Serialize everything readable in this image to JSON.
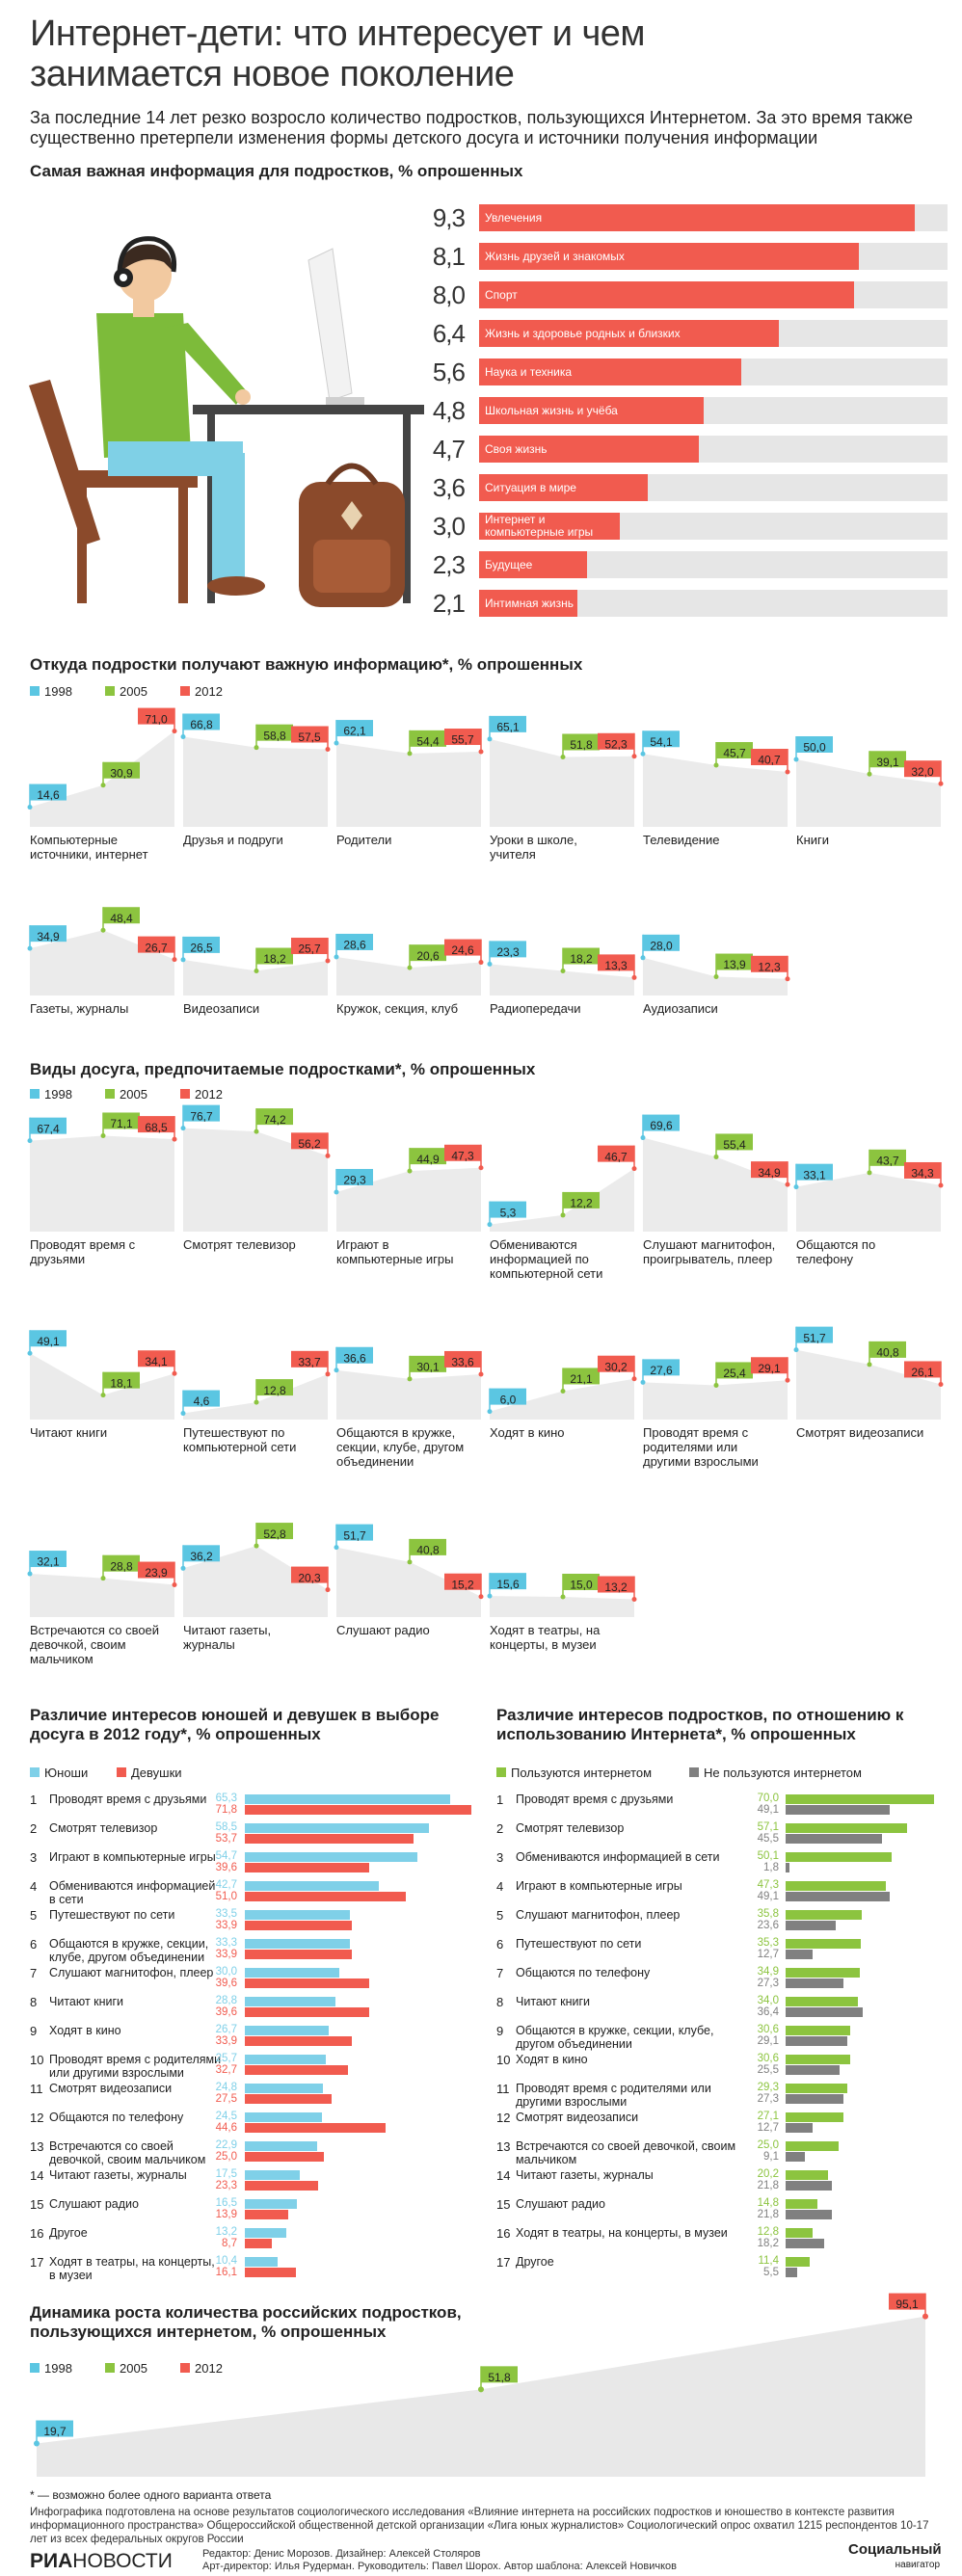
{
  "header": {
    "title": "Интернет-дети: что интересует и чем занимается новое поколение",
    "subtitle": "За последние 14 лет резко возросло количество подростков, пользующихся Интернетом. За это время также существенно претерпели изменения формы детского досуга и источники получения информации"
  },
  "chart_data": [
    {
      "type": "bar",
      "title": "Самая важная информация для подростков, % опрошенных",
      "categories": [
        "Увлечения",
        "Жизнь друзей и знакомых",
        "Спорт",
        "Жизнь и здоровье родных и близких",
        "Наука и техника",
        "Школьная жизнь и учёба",
        "Своя жизнь",
        "Ситуация в мире",
        "Интернет и компьютерные игры",
        "Будущее",
        "Интимная жизнь"
      ],
      "values": [
        9.3,
        8.1,
        8.0,
        6.4,
        5.6,
        4.8,
        4.7,
        3.6,
        3.0,
        2.3,
        2.1
      ],
      "value_labels": [
        "9,3",
        "8,1",
        "8,0",
        "6,4",
        "5,6",
        "4,8",
        "4,7",
        "3,6",
        "3,0",
        "2,3",
        "2,1"
      ],
      "color": "#f15b4f",
      "xlim": [
        0,
        10
      ]
    },
    {
      "type": "flags",
      "title": "Откуда подростки получают важную информацию*, % опрошенных",
      "categories": [
        "Компьютерные источники, интернет",
        "Друзья и подруги",
        "Родители",
        "Уроки в школе, учителя",
        "Телевидение",
        "Книги",
        "Газеты, журналы",
        "Видеозаписи",
        "Кружок, секция, клуб",
        "Радиопередачи",
        "Аудиозаписи"
      ],
      "series": [
        {
          "name": "1998",
          "color": "#5bc6e2",
          "values": [
            14.6,
            66.8,
            62.1,
            65.1,
            54.1,
            50.0,
            34.9,
            26.5,
            28.6,
            23.3,
            28.0
          ],
          "value_labels": [
            "14,6",
            "66,8",
            "62,1",
            "65,1",
            "54,1",
            "50,0",
            "34,9",
            "26,5",
            "28,6",
            "23,3",
            "28,0"
          ]
        },
        {
          "name": "2005",
          "color": "#8cc43f",
          "values": [
            30.9,
            58.8,
            54.4,
            51.8,
            45.7,
            39.1,
            48.4,
            18.2,
            20.6,
            18.2,
            13.9
          ],
          "value_labels": [
            "30,9",
            "58,8",
            "54,4",
            "51,8",
            "45,7",
            "39,1",
            "48,4",
            "18,2",
            "20,6",
            "18,2",
            "13,9"
          ]
        },
        {
          "name": "2012",
          "color": "#f15b4f",
          "values": [
            71.0,
            57.5,
            55.7,
            52.3,
            40.7,
            32.0,
            26.7,
            25.7,
            24.6,
            13.3,
            12.3
          ],
          "value_labels": [
            "71,0",
            "57,5",
            "55,7",
            "52,3",
            "40,7",
            "32,0",
            "26,7",
            "25,7",
            "24,6",
            "13,3",
            "12,3"
          ]
        }
      ],
      "ylim": [
        0,
        80
      ]
    },
    {
      "type": "flags",
      "title": "Виды досуга, предпочитаемые подростками*, % опрошенных",
      "categories": [
        "Проводят время с друзьями",
        "Смотрят телевизор",
        "Играют в компьютерные игры",
        "Обмениваются информацией по компьютерной сети",
        "Слушают магнитофон, проигрыватель, плеер",
        "Общаются по телефону",
        "Читают книги",
        "Путешествуют по компьютерной сети",
        "Общаются в кружке, секции, клубе, другом объединении",
        "Ходят в кино",
        "Проводят время с родителями или другими взрослыми",
        "Смотрят видеозаписи",
        "Встречаются со своей девочкой, своим мальчиком",
        "Читают газеты, журналы",
        "Слушают радио",
        "Ходят в театры, на концерты, в музеи"
      ],
      "series": [
        {
          "name": "1998",
          "color": "#5bc6e2",
          "values": [
            67.4,
            76.7,
            29.3,
            5.3,
            69.6,
            33.1,
            49.1,
            4.6,
            36.6,
            6.0,
            27.6,
            51.7,
            32.1,
            36.2,
            51.7,
            15.6
          ],
          "value_labels": [
            "67,4",
            "76,7",
            "29,3",
            "5,3",
            "69,6",
            "33,1",
            "49,1",
            "4,6",
            "36,6",
            "6,0",
            "27,6",
            "51,7",
            "32,1",
            "36,2",
            "51,7",
            "15,6"
          ]
        },
        {
          "name": "2005",
          "color": "#8cc43f",
          "values": [
            71.1,
            74.2,
            44.9,
            12.2,
            55.4,
            43.7,
            18.1,
            12.8,
            30.1,
            21.1,
            25.4,
            40.8,
            28.8,
            52.8,
            40.8,
            15.0
          ],
          "value_labels": [
            "71,1",
            "74,2",
            "44,9",
            "12,2",
            "55,4",
            "43,7",
            "18,1",
            "12,8",
            "30,1",
            "21,1",
            "25,4",
            "40,8",
            "28,8",
            "52,8",
            "40,8",
            "15,0"
          ]
        },
        {
          "name": "2012",
          "color": "#f15b4f",
          "values": [
            68.5,
            56.2,
            47.3,
            46.7,
            34.9,
            34.3,
            34.1,
            33.7,
            33.6,
            30.2,
            29.1,
            26.1,
            23.9,
            20.3,
            15.2,
            13.2
          ],
          "value_labels": [
            "68,5",
            "56,2",
            "47,3",
            "46,7",
            "34,9",
            "34,3",
            "34,1",
            "33,7",
            "33,6",
            "30,2",
            "29,1",
            "26,1",
            "23,9",
            "20,3",
            "15,2",
            "13,2"
          ]
        }
      ],
      "ylim": [
        0,
        80
      ]
    },
    {
      "type": "hbar",
      "title": "Различие интересов юношей и девушек в выборе досуга в 2012 году*, % опрошенных",
      "ranks": [
        1,
        2,
        3,
        4,
        5,
        6,
        7,
        8,
        9,
        10,
        11,
        12,
        13,
        14,
        15,
        16,
        17
      ],
      "categories": [
        "Проводят время с друзьями",
        "Смотрят телевизор",
        "Играют в компьютерные игры",
        "Обмениваются информацией в сети",
        "Путешествуют по сети",
        "Общаются в кружке, секции, клубе, другом объединении",
        "Слушают магнитофон, плеер",
        "Читают книги",
        "Ходят в кино",
        "Проводят время с родителями или другими взрослыми",
        "Смотрят видеозаписи",
        "Общаются по телефону",
        "Встречаются со своей девочкой, своим мальчиком",
        "Читают газеты, журналы",
        "Слушают радио",
        "Другое",
        "Ходят в театры, на концерты, в музеи"
      ],
      "series": [
        {
          "name": "Юноши",
          "color": "#7fd0e8",
          "values": [
            65.3,
            58.5,
            54.7,
            42.7,
            33.5,
            33.3,
            30.0,
            28.8,
            26.7,
            25.7,
            24.8,
            24.5,
            22.9,
            17.5,
            16.5,
            13.2,
            10.4
          ],
          "value_labels": [
            "65,3",
            "58,5",
            "54,7",
            "42,7",
            "33,5",
            "33,3",
            "30,0",
            "28,8",
            "26,7",
            "25,7",
            "24,8",
            "24,5",
            "22,9",
            "17,5",
            "16,5",
            "13,2",
            "10,4"
          ]
        },
        {
          "name": "Девушки",
          "color": "#f15b4f",
          "values": [
            71.8,
            53.7,
            39.6,
            51.0,
            33.9,
            33.9,
            39.6,
            39.6,
            33.9,
            32.7,
            27.5,
            44.6,
            25.0,
            23.3,
            13.9,
            8.7,
            16.1
          ],
          "value_labels": [
            "71,8",
            "53,7",
            "39,6",
            "51,0",
            "33,9",
            "33,9",
            "39,6",
            "39,6",
            "33,9",
            "32,7",
            "27,5",
            "44,6",
            "25,0",
            "23,3",
            "13,9",
            "8,7",
            "16,1"
          ]
        }
      ],
      "xlim": [
        0,
        75
      ]
    },
    {
      "type": "hbar",
      "title": "Различие интересов подростков, по отношению к использованию Интернета*, % опрошенных",
      "ranks": [
        1,
        2,
        3,
        4,
        5,
        6,
        7,
        8,
        9,
        10,
        11,
        12,
        13,
        14,
        15,
        16,
        17
      ],
      "categories": [
        "Проводят время с друзьями",
        "Смотрят телевизор",
        "Обмениваются информацией в сети",
        "Играют в компьютерные игры",
        "Слушают магнитофон, плеер",
        "Путешествуют по сети",
        "Общаются по телефону",
        "Читают книги",
        "Общаются в кружке, секции, клубе, другом объединении",
        "Ходят в кино",
        "Проводят время с родителями или другими взрослыми",
        "Смотрят видеозаписи",
        "Встречаются со своей девочкой, своим мальчиком",
        "Читают газеты, журналы",
        "Слушают радио",
        "Ходят в театры, на концерты, в музеи",
        "Другое"
      ],
      "series": [
        {
          "name": "Пользуются интернетом",
          "color": "#8cc43f",
          "values": [
            70.0,
            57.1,
            50.1,
            47.3,
            35.8,
            35.3,
            34.9,
            34.0,
            30.6,
            30.6,
            29.3,
            27.1,
            25.0,
            20.2,
            14.8,
            12.8,
            11.4
          ],
          "value_labels": [
            "70,0",
            "57,1",
            "50,1",
            "47,3",
            "35,8",
            "35,3",
            "34,9",
            "34,0",
            "30,6",
            "30,6",
            "29,3",
            "27,1",
            "25,0",
            "20,2",
            "14,8",
            "12,8",
            "11,4"
          ]
        },
        {
          "name": "Не пользуются интернетом",
          "color": "#808080",
          "values": [
            49.1,
            45.5,
            1.8,
            49.1,
            23.6,
            12.7,
            27.3,
            36.4,
            29.1,
            25.5,
            27.3,
            12.7,
            9.1,
            21.8,
            21.8,
            18.2,
            5.5
          ],
          "value_labels": [
            "49,1",
            "45,5",
            "1,8",
            "49,1",
            "23,6",
            "12,7",
            "27,3",
            "36,4",
            "29,1",
            "25,5",
            "27,3",
            "12,7",
            "9,1",
            "21,8",
            "21,8",
            "18,2",
            "5,5"
          ]
        }
      ],
      "xlim": [
        0,
        75
      ]
    },
    {
      "type": "area",
      "title": "Динамика роста количества российских подростков, пользующихся интернетом, % опрошенных",
      "x": [
        1998,
        2005,
        2012
      ],
      "values": [
        19.7,
        51.8,
        95.1
      ],
      "value_labels": [
        "19,7",
        "51,8",
        "95,1"
      ],
      "colors": [
        "#5bc6e2",
        "#8cc43f",
        "#f15b4f"
      ],
      "xlim": [
        1998,
        2012
      ],
      "ylim": [
        0,
        100
      ]
    }
  ],
  "footer": {
    "note": "* — возможно более одного варианта ответа",
    "source": "Инфографика подготовлена на основе результатов социологического исследования «Влияние интернета на российских подростков и юношество в контексте развития информационного пространства» Общероссийской общественной детской организации «Лига юных журналистов» Социологический опрос охватил 1215 респондентов 10-17 лет из всех федеральных округов России",
    "credits": [
      "Редактор: Денис Морозов. Дизайнер: Алексей Столяров",
      "Арт-директор: Илья Рудерман. Руководитель: Павел Шорох. Автор шаблона: Алексей Новичков"
    ],
    "logo_left": [
      "РИА",
      "НОВОСТИ"
    ],
    "logo_right": [
      "Социальный",
      "навигатор"
    ]
  }
}
